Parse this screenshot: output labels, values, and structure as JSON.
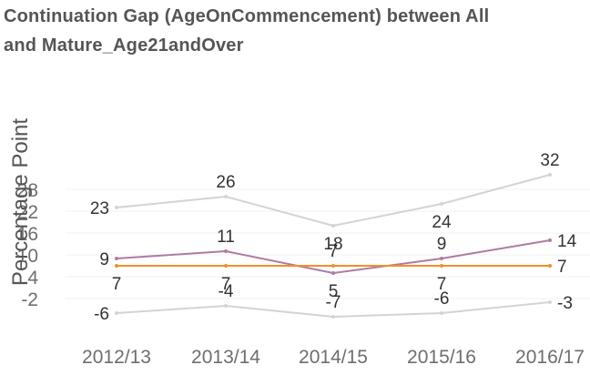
{
  "title_lines": [
    "Continuation Gap (AgeOnCommencement) between  All",
    "and Mature_Age21andOver"
  ],
  "chart_data": {
    "type": "line",
    "title": "Continuation Gap (AgeOnCommencement) between  All and Mature_Age21andOver",
    "xlabel": "",
    "ylabel": "Percentage Point",
    "categories": [
      "2012/13",
      "2013/14",
      "2014/15",
      "2015/16",
      "2016/17"
    ],
    "yticks": [
      -2,
      4,
      10,
      16,
      22,
      28
    ],
    "ylim": [
      -10,
      33
    ],
    "grid": true,
    "series": [
      {
        "color": "#d4d4d4",
        "values": [
          23,
          26,
          18,
          24,
          32
        ],
        "labels": [
          "23",
          "26",
          "18",
          "24",
          "32"
        ],
        "label_pos": [
          "left",
          "above",
          "below",
          "below",
          "above"
        ]
      },
      {
        "color": "#b07aa1",
        "values": [
          9,
          11,
          5,
          9,
          14
        ],
        "labels": [
          "9",
          "11",
          "5",
          "9",
          "14"
        ],
        "label_pos": [
          "left",
          "above",
          "below",
          "above",
          "right"
        ]
      },
      {
        "color": "#f28e2b",
        "values": [
          7,
          7,
          7,
          7,
          7
        ],
        "labels": [
          "7",
          "7",
          "7",
          "7",
          "7"
        ],
        "label_pos": [
          "below",
          "below",
          "above",
          "below",
          "right"
        ]
      },
      {
        "color": "#d4d4d4",
        "values": [
          -6,
          -4,
          -7,
          -6,
          -3
        ],
        "labels": [
          "-6",
          "-4",
          "-7",
          "-6",
          "-3"
        ],
        "label_pos": [
          "left",
          "above",
          "above",
          "above",
          "right"
        ]
      }
    ]
  }
}
